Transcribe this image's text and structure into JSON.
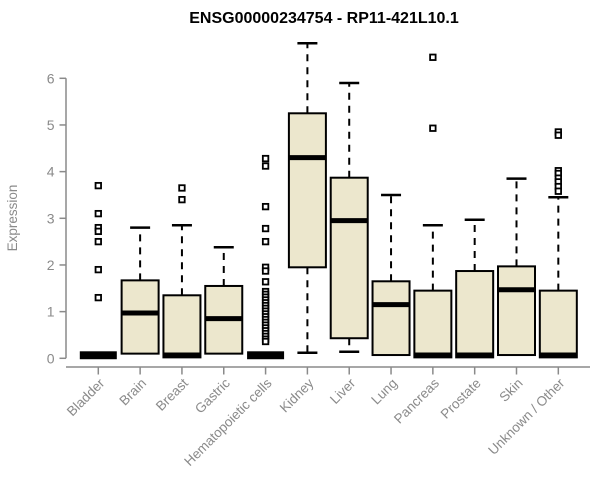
{
  "chart_data": {
    "type": "boxplot",
    "title": "ENSG00000234754 - RP11-421L10.1",
    "ylabel": "Expression",
    "xlabel": "",
    "ylim": [
      0,
      6.9
    ],
    "yticks": [
      0,
      1,
      2,
      3,
      4,
      5,
      6
    ],
    "grid": false,
    "legend": null,
    "box_fill_color": "#ece7cd",
    "box_line_color": "#000000",
    "axis_color": "#8a8a8a",
    "whisker_style": "dashed",
    "outlier_marker": "small-open-square",
    "categories": [
      "Bladder",
      "Brain",
      "Breast",
      "Gastric",
      "Hematopoietic cells",
      "Kidney",
      "Liver",
      "Lung",
      "Pancreas",
      "Prostate",
      "Skin",
      "Unknown / Other"
    ],
    "series": [
      {
        "label": "Bladder",
        "q1": 0,
        "median": 0.05,
        "q3": 0.1,
        "whisker_low": null,
        "whisker_high": null,
        "collapsed": true,
        "outliers": [
          3.7,
          3.1,
          2.8,
          2.72,
          2.5,
          1.9,
          1.3
        ]
      },
      {
        "label": "Brain",
        "q1": 0.1,
        "median": 0.97,
        "q3": 1.67,
        "whisker_low": null,
        "whisker_high": 2.8,
        "collapsed": false,
        "outliers": []
      },
      {
        "label": "Breast",
        "q1": 0.02,
        "median": 0.07,
        "q3": 1.35,
        "whisker_low": null,
        "whisker_high": 2.85,
        "collapsed": false,
        "outliers": [
          3.65,
          3.4
        ]
      },
      {
        "label": "Gastric",
        "q1": 0.1,
        "median": 0.85,
        "q3": 1.55,
        "whisker_low": null,
        "whisker_high": 2.38,
        "collapsed": false,
        "outliers": []
      },
      {
        "label": "Hematopoietic cells",
        "q1": 0,
        "median": 0.05,
        "q3": 0.1,
        "whisker_low": null,
        "whisker_high": null,
        "collapsed": true,
        "outliers": [
          4.28,
          4.12,
          3.25,
          2.78,
          2.5,
          1.95,
          1.87,
          1.64,
          1.43,
          1.37,
          1.31,
          1.25,
          1.19,
          1.13,
          1.07,
          1.01,
          0.95,
          0.89,
          0.83,
          0.77,
          0.71,
          0.65,
          0.59,
          0.53,
          0.47,
          0.41,
          0.36
        ]
      },
      {
        "label": "Kidney",
        "q1": 1.95,
        "median": 4.3,
        "q3": 5.25,
        "whisker_low": 0.12,
        "whisker_high": 6.75,
        "collapsed": false,
        "outliers": []
      },
      {
        "label": "Liver",
        "q1": 0.43,
        "median": 2.95,
        "q3": 3.87,
        "whisker_low": 0.14,
        "whisker_high": 5.9,
        "collapsed": false,
        "outliers": []
      },
      {
        "label": "Lung",
        "q1": 0.07,
        "median": 1.15,
        "q3": 1.65,
        "whisker_low": null,
        "whisker_high": 3.5,
        "collapsed": false,
        "outliers": []
      },
      {
        "label": "Pancreas",
        "q1": 0.02,
        "median": 0.07,
        "q3": 1.45,
        "whisker_low": null,
        "whisker_high": 2.85,
        "collapsed": false,
        "outliers": [
          6.45,
          4.93
        ]
      },
      {
        "label": "Prostate",
        "q1": 0.02,
        "median": 0.07,
        "q3": 1.87,
        "whisker_low": null,
        "whisker_high": 2.97,
        "collapsed": false,
        "outliers": []
      },
      {
        "label": "Skin",
        "q1": 0.07,
        "median": 1.47,
        "q3": 1.97,
        "whisker_low": null,
        "whisker_high": 3.85,
        "collapsed": false,
        "outliers": []
      },
      {
        "label": "Unknown / Other",
        "q1": 0.02,
        "median": 0.07,
        "q3": 1.45,
        "whisker_low": null,
        "whisker_high": 3.45,
        "collapsed": false,
        "outliers": [
          4.85,
          4.78,
          4.02,
          3.96,
          3.86,
          3.78,
          3.68,
          3.58
        ]
      }
    ]
  }
}
